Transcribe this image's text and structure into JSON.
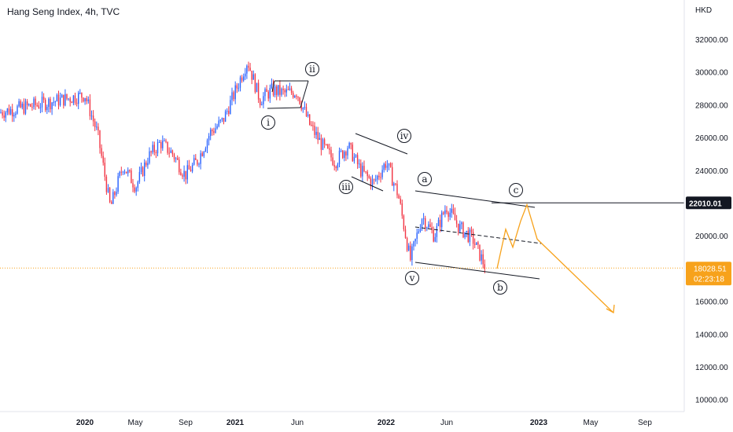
{
  "header": {
    "title": "Hang Seng Index, 4h, TVC"
  },
  "axis": {
    "currency": "HKD",
    "y_ticks": [
      "32000.00",
      "30000.00",
      "28000.00",
      "26000.00",
      "24000.00",
      "22000.00",
      "20000.00",
      "18000.00",
      "16000.00",
      "14000.00",
      "12000.00",
      "10000.00"
    ],
    "x_ticks": [
      "2020",
      "May",
      "Sep",
      "2021",
      "Jun",
      "2022",
      "Jun",
      "2023",
      "May",
      "Sep"
    ]
  },
  "labels": {
    "level_line_value": "22010.01",
    "last_price": "18028.51",
    "countdown": "02:23:18"
  },
  "colors": {
    "up_candle": "#2962ff",
    "down_candle": "#f23645",
    "projection": "#f7a21b",
    "price_line": "#f7a21b",
    "level_badge": "#131722"
  },
  "chart_data": {
    "type": "line",
    "title": "Hang Seng Index, 4h, TVC",
    "ylabel": "HKD",
    "ylim": [
      9500,
      33500
    ],
    "x_ticks": [
      "2020",
      "May",
      "Sep",
      "2021",
      "Jun",
      "2022",
      "Jun",
      "2023",
      "May",
      "Sep"
    ],
    "series": [
      {
        "values": [
          {
            "x": "2019-12",
            "y": 27500
          },
          {
            "x": "2020-01",
            "y": 28600
          },
          {
            "x": "2020-02",
            "y": 26200
          },
          {
            "x": "2020-03",
            "y": 21700
          },
          {
            "x": "2020-04",
            "y": 24300
          },
          {
            "x": "2020-05",
            "y": 23000
          },
          {
            "x": "2020-06",
            "y": 24800
          },
          {
            "x": "2020-07",
            "y": 25700
          },
          {
            "x": "2020-08",
            "y": 25000
          },
          {
            "x": "2020-09",
            "y": 23700
          },
          {
            "x": "2020-10",
            "y": 24600
          },
          {
            "x": "2020-11",
            "y": 26300
          },
          {
            "x": "2020-12",
            "y": 27000
          },
          {
            "x": "2021-01",
            "y": 28800
          },
          {
            "x": "2021-02",
            "y": 30700
          },
          {
            "x": "2021-03",
            "y": 28300
          },
          {
            "x": "2021-04",
            "y": 28900
          },
          {
            "x": "2021-05",
            "y": 28700
          },
          {
            "x": "2021-06",
            "y": 28800
          },
          {
            "x": "2021-07",
            "y": 26800
          },
          {
            "x": "2021-08",
            "y": 25500
          },
          {
            "x": "2021-09",
            "y": 24500
          },
          {
            "x": "2021-10",
            "y": 25500
          },
          {
            "x": "2021-11",
            "y": 24000
          },
          {
            "x": "2021-12",
            "y": 23200
          },
          {
            "x": "2022-01",
            "y": 24500
          },
          {
            "x": "2022-02",
            "y": 22500
          },
          {
            "x": "2022-03",
            "y": 18500
          },
          {
            "x": "2022-04",
            "y": 21200
          },
          {
            "x": "2022-05",
            "y": 20000
          },
          {
            "x": "2022-06",
            "y": 21800
          },
          {
            "x": "2022-07",
            "y": 20500
          },
          {
            "x": "2022-08",
            "y": 19800
          },
          {
            "x": "2022-09",
            "y": 18028
          }
        ]
      }
    ],
    "wave_labels": [
      {
        "label": "i",
        "x": "2021-03",
        "y": 26800
      },
      {
        "label": "ii",
        "x": "2021-06",
        "y": 31000
      },
      {
        "label": "iii",
        "x": "2021-09",
        "y": 22900
      },
      {
        "label": "iv",
        "x": "2021-12",
        "y": 26000
      },
      {
        "label": "v",
        "x": "2022-02",
        "y": 17200
      },
      {
        "label": "a",
        "x": "2022-02",
        "y": 23400
      },
      {
        "label": "b",
        "x": "2022-09",
        "y": 16800
      },
      {
        "label": "c",
        "x": "2022-12",
        "y": 22800
      }
    ],
    "projection": [
      {
        "x": "2022-09",
        "y": 18000
      },
      {
        "x": "2022-10",
        "y": 20400
      },
      {
        "x": "2022-11",
        "y": 19300
      },
      {
        "x": "2022-11",
        "y": 20900
      },
      {
        "x": "2022-12",
        "y": 21900
      },
      {
        "x": "2023-01",
        "y": 19800
      },
      {
        "x": "2023-08",
        "y": 15300
      }
    ],
    "level_line": 22010.01,
    "last_price": 18028.51,
    "grid": false
  }
}
